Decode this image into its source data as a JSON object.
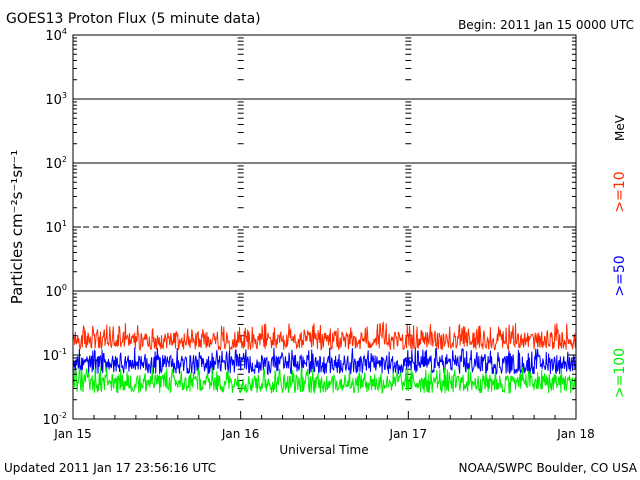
{
  "title": "GOES13 Proton Flux (5 minute data)",
  "begin": "Begin: 2011 Jan 15 0000 UTC",
  "updated": "Updated 2011 Jan 17 23:56:16 UTC",
  "credit": "NOAA/SWPC Boulder, CO USA",
  "chart_data": {
    "type": "line",
    "title": "GOES13 Proton Flux (5 minute data)",
    "xlabel": "Universal Time",
    "ylabel": "Particles cm⁻²s⁻¹sr⁻¹",
    "yscale": "log",
    "ylim": [
      0.01,
      10000
    ],
    "xlim": [
      0,
      3
    ],
    "x_ticks": [
      {
        "value": 0,
        "label": "Jan 15"
      },
      {
        "value": 1,
        "label": "Jan 16"
      },
      {
        "value": 2,
        "label": "Jan 17"
      },
      {
        "value": 3,
        "label": "Jan 18"
      }
    ],
    "y_ticks": [
      {
        "value": 0.01,
        "base": "10",
        "exp": "-2"
      },
      {
        "value": 0.1,
        "base": "10",
        "exp": "-1"
      },
      {
        "value": 1,
        "base": "10",
        "exp": "0"
      },
      {
        "value": 10,
        "base": "10",
        "exp": "1"
      },
      {
        "value": 100,
        "base": "10",
        "exp": "2"
      },
      {
        "value": 1000,
        "base": "10",
        "exp": "3"
      },
      {
        "value": 10000,
        "base": "10",
        "exp": "4"
      }
    ],
    "threshold_lines": [
      {
        "value": 1,
        "style": "solid"
      },
      {
        "value": 10,
        "style": "dashed"
      },
      {
        "value": 100,
        "style": "solid"
      },
      {
        "value": 1000,
        "style": "solid"
      }
    ],
    "unit_label": "MeV",
    "series": [
      {
        "name": ">=10",
        "color": "#ff2a00",
        "baseline": 0.17,
        "range": [
          0.12,
          0.32
        ]
      },
      {
        "name": ">=50",
        "color": "#0000ff",
        "baseline": 0.075,
        "range": [
          0.05,
          0.13
        ]
      },
      {
        "name": ">=100",
        "color": "#00ee00",
        "baseline": 0.038,
        "range": [
          0.025,
          0.065
        ]
      }
    ]
  }
}
